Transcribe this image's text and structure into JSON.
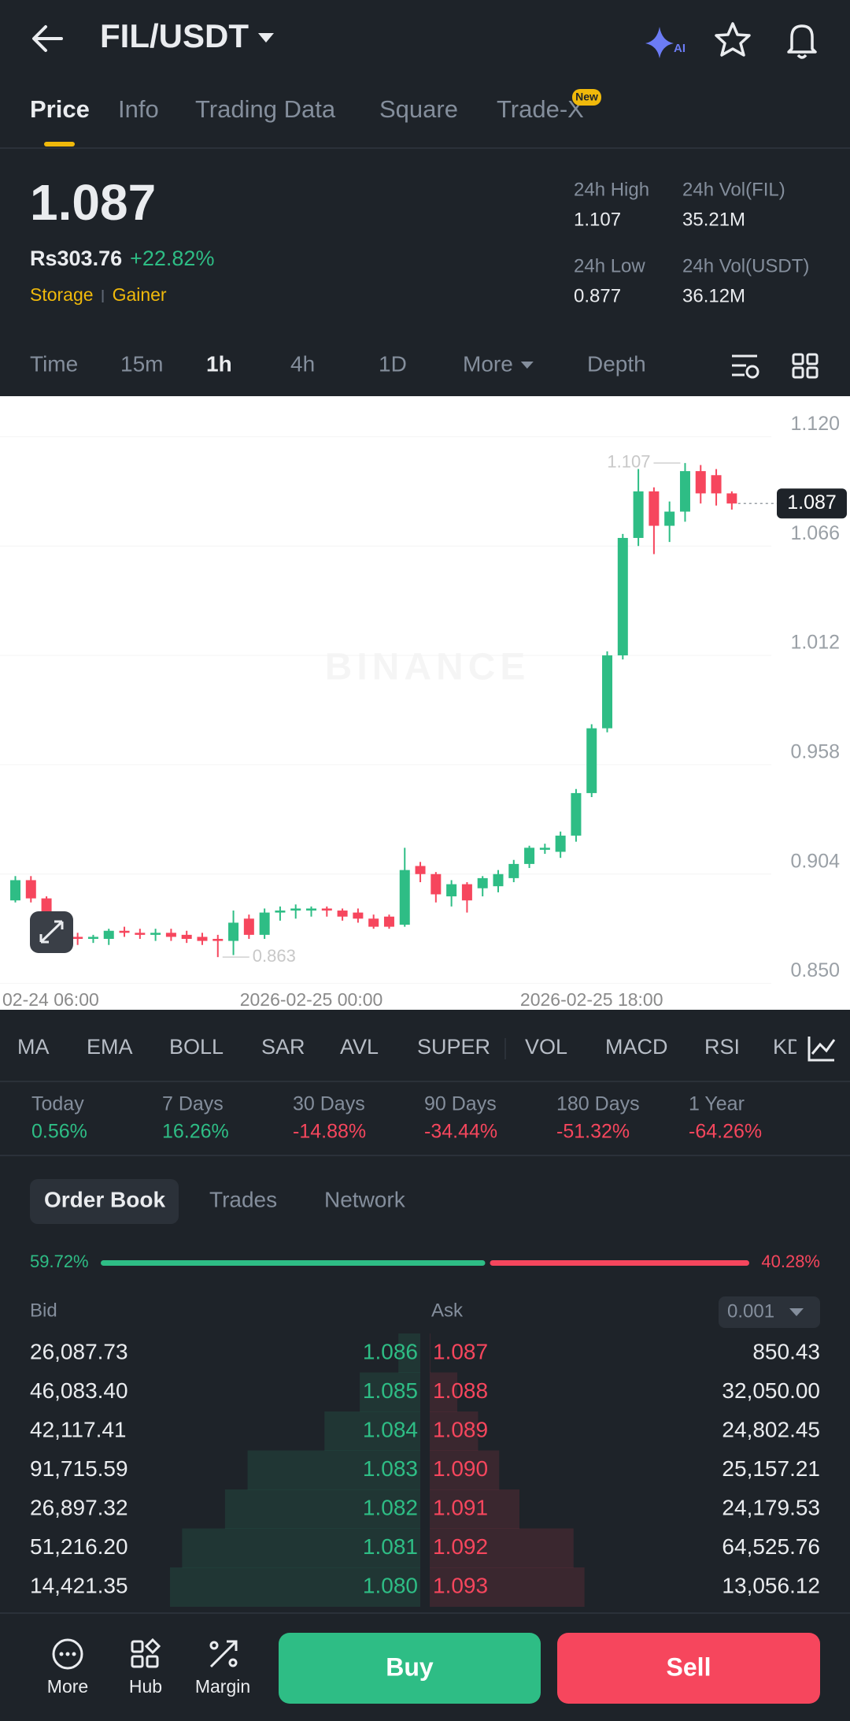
{
  "header": {
    "pair": "FIL/USDT"
  },
  "tabs": {
    "items": [
      "Price",
      "Info",
      "Trading Data",
      "Square",
      "Trade-X"
    ],
    "badge": "New"
  },
  "ticker": {
    "price": "1.087",
    "fiat_price": "Rs303.76",
    "change": "+22.82%",
    "tags": [
      "Storage",
      "Gainer"
    ],
    "stats": [
      {
        "label": "24h High",
        "value": "1.107"
      },
      {
        "label": "24h Vol(FIL)",
        "value": "35.21M"
      },
      {
        "label": "24h Low",
        "value": "0.877"
      },
      {
        "label": "24h Vol(USDT)",
        "value": "36.12M"
      }
    ]
  },
  "intervals": [
    "Time",
    "15m",
    "1h",
    "4h",
    "1D",
    "More",
    "Depth"
  ],
  "chart_data": {
    "type": "candlestick",
    "categories": [
      null,
      "02-24 06:00",
      null,
      null,
      null,
      null,
      null,
      null,
      null,
      null,
      null,
      null,
      null,
      null,
      null,
      null,
      null,
      null,
      null,
      "2026-02-25 00:00",
      null,
      null,
      null,
      null,
      null,
      null,
      null,
      null,
      null,
      null,
      null,
      null,
      null,
      null,
      null,
      null,
      null,
      "2026-02-25 18:00",
      null,
      null,
      null,
      null,
      null,
      null,
      null,
      null,
      null
    ],
    "open": [
      0.891,
      0.901,
      0.892,
      0.877,
      0.873,
      0.872,
      0.872,
      0.876,
      0.875,
      0.874,
      0.875,
      0.874,
      0.873,
      0.872,
      0.871,
      0.882,
      0.874,
      0.885,
      0.886,
      0.886,
      0.887,
      0.886,
      0.885,
      0.882,
      0.883,
      0.879,
      0.908,
      0.904,
      0.893,
      0.899,
      0.897,
      0.898,
      0.902,
      0.909,
      0.916,
      0.915,
      0.923,
      0.944,
      0.976,
      1.012,
      1.07,
      1.093,
      1.076,
      1.083,
      1.103,
      1.101,
      1.092
    ],
    "high": [
      0.903,
      0.903,
      0.893,
      0.879,
      0.875,
      0.874,
      0.877,
      0.878,
      0.877,
      0.877,
      0.877,
      0.876,
      0.875,
      0.874,
      0.886,
      0.884,
      0.887,
      0.888,
      0.889,
      0.888,
      0.888,
      0.887,
      0.887,
      0.884,
      0.884,
      0.917,
      0.91,
      0.905,
      0.901,
      0.9,
      0.903,
      0.906,
      0.911,
      0.918,
      0.919,
      0.925,
      0.946,
      0.978,
      1.014,
      1.072,
      1.104,
      1.095,
      1.088,
      1.107,
      1.106,
      1.104,
      1.093
    ],
    "low": [
      0.89,
      0.89,
      0.874,
      0.869,
      0.869,
      0.87,
      0.869,
      0.873,
      0.872,
      0.871,
      0.871,
      0.87,
      0.869,
      0.863,
      0.864,
      0.872,
      0.872,
      0.881,
      0.882,
      0.883,
      0.883,
      0.881,
      0.88,
      0.877,
      0.877,
      0.878,
      0.9,
      0.89,
      0.888,
      0.885,
      0.893,
      0.895,
      0.9,
      0.907,
      0.914,
      0.912,
      0.92,
      0.942,
      0.974,
      1.01,
      1.066,
      1.062,
      1.068,
      1.078,
      1.087,
      1.086,
      1.084
    ],
    "close": [
      0.901,
      0.892,
      0.877,
      0.872,
      0.872,
      0.873,
      0.876,
      0.875,
      0.874,
      0.875,
      0.873,
      0.872,
      0.871,
      0.871,
      0.88,
      0.874,
      0.885,
      0.886,
      0.887,
      0.887,
      0.886,
      0.883,
      0.882,
      0.878,
      0.878,
      0.906,
      0.904,
      0.894,
      0.899,
      0.891,
      0.902,
      0.904,
      0.909,
      0.917,
      0.917,
      0.923,
      0.944,
      0.976,
      1.012,
      1.07,
      1.093,
      1.076,
      1.083,
      1.103,
      1.092,
      1.092,
      1.087
    ],
    "up_color": "#2ebd85",
    "down_color": "#f6465d",
    "ylim": [
      0.837,
      1.14
    ],
    "yticks": [
      {
        "value": 1.12,
        "label": "1.120"
      },
      1.066,
      1.012,
      0.958,
      0.904,
      {
        "value": 0.85,
        "label": "0.850"
      }
    ],
    "grid": true,
    "high_marker": 1.107,
    "low_marker": 0.863,
    "last_price": 1.087,
    "watermark": "BINANCE"
  },
  "indicators": [
    "MA",
    "EMA",
    "BOLL",
    "SAR",
    "AVL",
    "SUPER",
    "VOL",
    "MACD",
    "RSI",
    "KD"
  ],
  "performance": [
    {
      "label": "Today",
      "value": "0.56%"
    },
    {
      "label": "7 Days",
      "value": "16.26%"
    },
    {
      "label": "30 Days",
      "value": "-14.88%"
    },
    {
      "label": "90 Days",
      "value": "-34.44%"
    },
    {
      "label": "180 Days",
      "value": "-51.32%"
    },
    {
      "label": "1 Year",
      "value": "-64.26%"
    }
  ],
  "order_book": {
    "tabs": [
      "Order Book",
      "Trades",
      "Network"
    ],
    "ratio": {
      "values": [
        59.72,
        40.28
      ],
      "value_labels": [
        "59.72%",
        "40.28%"
      ],
      "colors": [
        "#2ebd85",
        "#f6465d"
      ]
    },
    "bid_header": "Bid",
    "ask_header": "Ask",
    "precision": "0.001",
    "bids": [
      {
        "qty": "26,087.73",
        "price": "1.086"
      },
      {
        "qty": "46,083.40",
        "price": "1.085"
      },
      {
        "qty": "42,117.41",
        "price": "1.084"
      },
      {
        "qty": "91,715.59",
        "price": "1.083"
      },
      {
        "qty": "26,897.32",
        "price": "1.082"
      },
      {
        "qty": "51,216.20",
        "price": "1.081"
      },
      {
        "qty": "14,421.35",
        "price": "1.080"
      }
    ],
    "asks": [
      {
        "price": "1.087",
        "qty": "850.43"
      },
      {
        "price": "1.088",
        "qty": "32,050.00"
      },
      {
        "price": "1.089",
        "qty": "24,802.45"
      },
      {
        "price": "1.090",
        "qty": "25,157.21"
      },
      {
        "price": "1.091",
        "qty": "24,179.53"
      },
      {
        "price": "1.092",
        "qty": "64,525.76"
      },
      {
        "price": "1.093",
        "qty": "13,056.12"
      }
    ]
  },
  "bottom_bar": {
    "items": [
      "More",
      "Hub",
      "Margin"
    ],
    "buy": "Buy",
    "sell": "Sell"
  }
}
